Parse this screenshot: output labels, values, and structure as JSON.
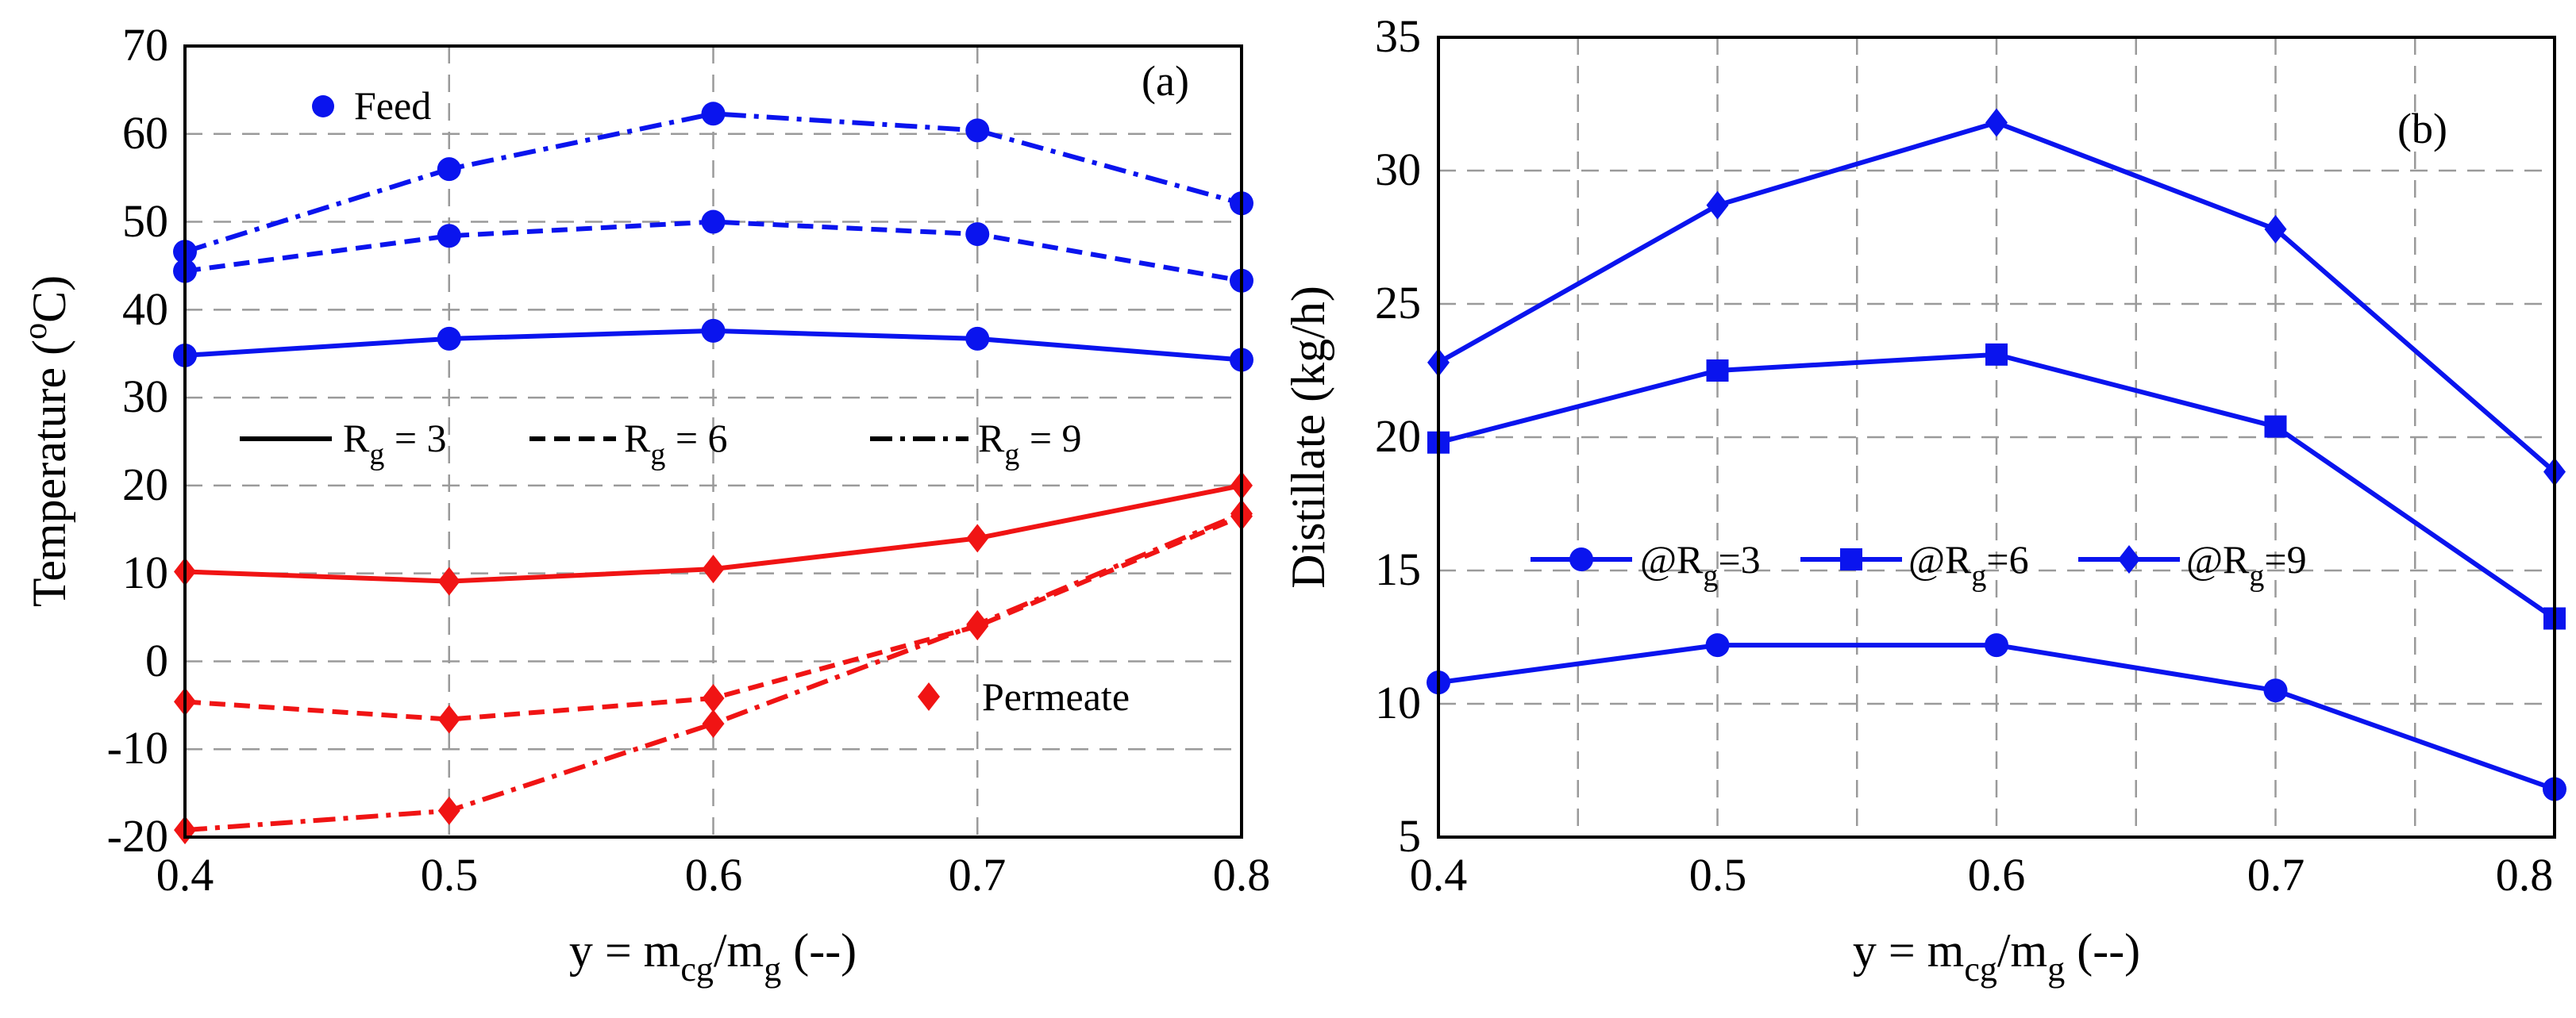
{
  "chart_data": [
    {
      "id": "a",
      "type": "line",
      "panel_label": "(a)",
      "x": [
        0.4,
        0.5,
        0.6,
        0.7,
        0.8
      ],
      "xlim": [
        0.4,
        0.8
      ],
      "ylim": [
        -20,
        70
      ],
      "xticks": [
        "0.4",
        "0.5",
        "0.6",
        "0.7",
        "0.8"
      ],
      "yticks": [
        "-20",
        "-10",
        "0",
        "10",
        "20",
        "30",
        "40",
        "50",
        "60",
        "70"
      ],
      "xlabel": {
        "prefix": "y = m",
        "sub1": "cg",
        "mid": "/m",
        "sub2": "g",
        "suffix": " (--)"
      },
      "ylabel": {
        "prefix": "Temperature (",
        "sup": "o",
        "suffix": "C)"
      },
      "colors": {
        "feed": "#0a14ee",
        "permeate": "#f01414"
      },
      "marker_legend": [
        {
          "label": "Feed",
          "marker": "circle",
          "color": "#0a14ee"
        },
        {
          "label": "Permeate",
          "marker": "diamond",
          "color": "#f01414"
        }
      ],
      "style_legend": [
        {
          "prefix": "R",
          "sub": "g",
          "suffix": " = 3",
          "dash": "solid"
        },
        {
          "prefix": "R",
          "sub": "g",
          "suffix": " = 6",
          "dash": "dashed"
        },
        {
          "prefix": "R",
          "sub": "g",
          "suffix": " = 9",
          "dash": "dashdot"
        }
      ],
      "series": [
        {
          "name": "Feed Rg=3",
          "group": "feed",
          "marker": "circle",
          "dash": "solid",
          "values": [
            34.8,
            36.7,
            37.6,
            36.7,
            34.3
          ]
        },
        {
          "name": "Feed Rg=6",
          "group": "feed",
          "marker": "circle",
          "dash": "dashed",
          "values": [
            44.4,
            48.4,
            50.0,
            48.6,
            43.3
          ]
        },
        {
          "name": "Feed Rg=9",
          "group": "feed",
          "marker": "circle",
          "dash": "dashdot",
          "values": [
            46.6,
            56.0,
            62.3,
            60.4,
            52.1
          ]
        },
        {
          "name": "Permeate Rg=3",
          "group": "permeate",
          "marker": "diamond",
          "dash": "solid",
          "values": [
            10.2,
            9.1,
            10.5,
            14.0,
            20.0
          ]
        },
        {
          "name": "Permeate Rg=6",
          "group": "permeate",
          "marker": "diamond",
          "dash": "dashed",
          "values": [
            -4.6,
            -6.6,
            -4.2,
            4.0,
            16.5
          ]
        },
        {
          "name": "Permeate Rg=9",
          "group": "permeate",
          "marker": "diamond",
          "dash": "dashdot",
          "values": [
            -19.2,
            -17.0,
            -7.1,
            4.2,
            16.8
          ]
        }
      ]
    },
    {
      "id": "b",
      "type": "line",
      "panel_label": "(b)",
      "x": [
        0.4,
        0.5,
        0.6,
        0.7,
        0.8
      ],
      "xlim": [
        0.4,
        0.8
      ],
      "ylim": [
        5,
        35
      ],
      "xticks": [
        "0.4",
        "0.5",
        "0.6",
        "0.7",
        "0.8"
      ],
      "yticks": [
        "5",
        "10",
        "15",
        "20",
        "25",
        "30",
        "35"
      ],
      "xlabel": {
        "prefix": "y = m",
        "sub1": "cg",
        "mid": "/m",
        "sub2": "g",
        "suffix": " (--)"
      },
      "ylabel": {
        "text": "Distillate (kg/h)"
      },
      "color": "#0a14ee",
      "series": [
        {
          "prefix": "@R",
          "sub": "g",
          "suffix": "=3",
          "marker": "circle",
          "values": [
            10.8,
            12.2,
            12.2,
            10.5,
            6.8
          ]
        },
        {
          "prefix": "@R",
          "sub": "g",
          "suffix": "=6",
          "marker": "square",
          "values": [
            19.8,
            22.5,
            23.1,
            20.4,
            13.2
          ]
        },
        {
          "prefix": "@R",
          "sub": "g",
          "suffix": "=9",
          "marker": "diamond",
          "values": [
            22.8,
            28.7,
            31.8,
            27.8,
            18.7
          ]
        }
      ]
    }
  ]
}
